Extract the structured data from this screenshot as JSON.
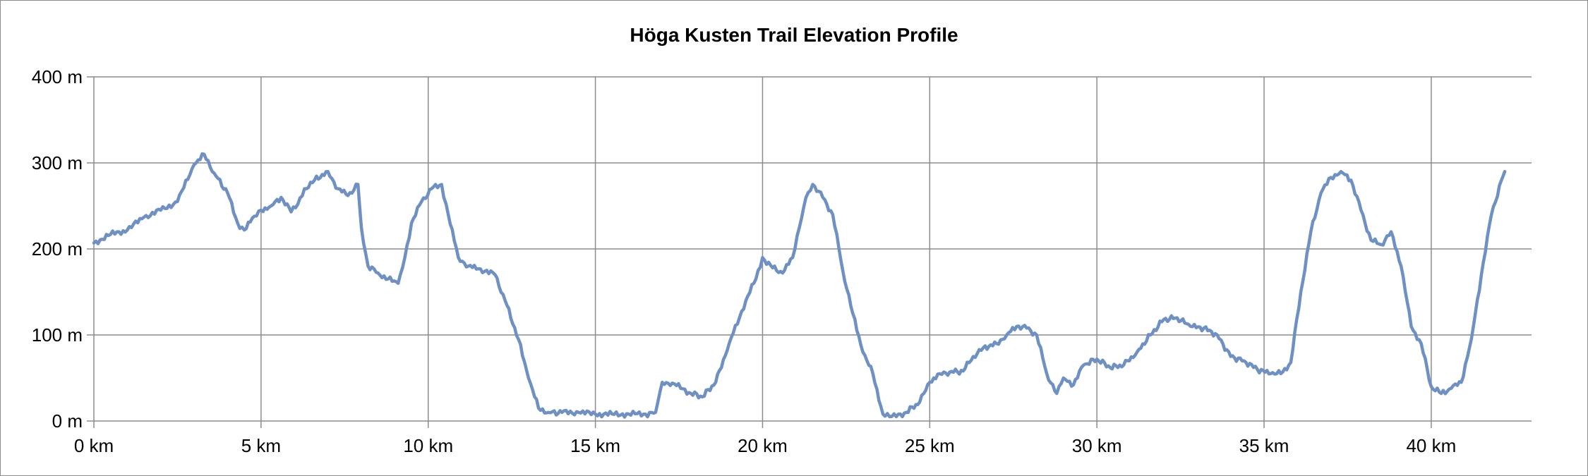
{
  "chart_data": {
    "type": "line",
    "title": "Höga Kusten Trail Elevation Profile",
    "xlabel": "",
    "ylabel": "",
    "xlim": [
      0,
      43
    ],
    "ylim": [
      0,
      400
    ],
    "x_ticks": [
      0,
      5,
      10,
      15,
      20,
      25,
      30,
      35,
      40
    ],
    "x_tick_labels": [
      "0 km",
      "5 km",
      "10 km",
      "15 km",
      "20 km",
      "25 km",
      "30 km",
      "35 km",
      "40 km"
    ],
    "y_ticks": [
      0,
      100,
      200,
      300,
      400
    ],
    "y_tick_labels": [
      "0 m",
      "100 m",
      "200 m",
      "300 m",
      "400 m"
    ],
    "grid": true,
    "legend": "none",
    "series": [
      {
        "color": "#6f90c3",
        "x": [
          0,
          0.5,
          1,
          1.5,
          2,
          2.5,
          3,
          3.3,
          3.6,
          4,
          4.3,
          4.5,
          4.8,
          5,
          5.3,
          5.6,
          5.9,
          6.1,
          6.3,
          6.6,
          7.0,
          7.3,
          7.6,
          7.9,
          8.0,
          8.2,
          8.5,
          8.8,
          9.1,
          9.3,
          9.5,
          9.8,
          10.1,
          10.4,
          10.6,
          10.9,
          11.2,
          11.5,
          12.0,
          12.3,
          12.7,
          13.0,
          13.3,
          13.6,
          14.0,
          14.5,
          15.0,
          15.5,
          16.0,
          16.5,
          16.8,
          17.0,
          17.3,
          17.8,
          18.2,
          18.6,
          19.0,
          19.5,
          19.8,
          20.0,
          20.3,
          20.6,
          20.9,
          21.1,
          21.3,
          21.5,
          21.8,
          22.1,
          22.4,
          22.7,
          23.0,
          23.3,
          23.6,
          23.8,
          24.0,
          24.3,
          24.7,
          25.0,
          25.3,
          25.6,
          26.0,
          26.3,
          26.6,
          27.0,
          27.3,
          27.6,
          27.9,
          28.2,
          28.5,
          28.8,
          29.0,
          29.3,
          29.6,
          30.0,
          30.4,
          30.8,
          31.2,
          31.6,
          32.0,
          32.4,
          32.8,
          33.2,
          33.6,
          34.0,
          34.4,
          34.8,
          35.2,
          35.5,
          35.8,
          36.1,
          36.4,
          36.7,
          37.0,
          37.3,
          37.6,
          37.9,
          38.2,
          38.5,
          38.8,
          39.1,
          39.4,
          39.7,
          40.0,
          40.3,
          40.6,
          40.9,
          41.2,
          41.5,
          41.8,
          42.1,
          42.2
        ],
        "y": [
          207,
          217,
          222,
          237,
          245,
          255,
          298,
          310,
          288,
          265,
          230,
          222,
          238,
          245,
          250,
          260,
          243,
          252,
          270,
          280,
          290,
          270,
          262,
          275,
          225,
          180,
          172,
          165,
          160,
          190,
          230,
          255,
          270,
          275,
          240,
          190,
          180,
          177,
          170,
          140,
          95,
          50,
          15,
          10,
          10,
          10,
          8,
          8,
          8,
          8,
          10,
          45,
          44,
          33,
          28,
          45,
          90,
          140,
          165,
          190,
          178,
          172,
          190,
          225,
          260,
          275,
          260,
          240,
          175,
          125,
          80,
          55,
          8,
          5,
          5,
          10,
          22,
          45,
          55,
          57,
          58,
          75,
          85,
          90,
          100,
          110,
          108,
          100,
          55,
          32,
          50,
          42,
          65,
          72,
          62,
          65,
          80,
          100,
          118,
          120,
          110,
          108,
          100,
          75,
          70,
          60,
          55,
          55,
          68,
          150,
          220,
          265,
          283,
          290,
          280,
          245,
          210,
          205,
          220,
          180,
          110,
          90,
          40,
          32,
          38,
          45,
          95,
          170,
          240,
          280,
          290
        ]
      }
    ]
  }
}
